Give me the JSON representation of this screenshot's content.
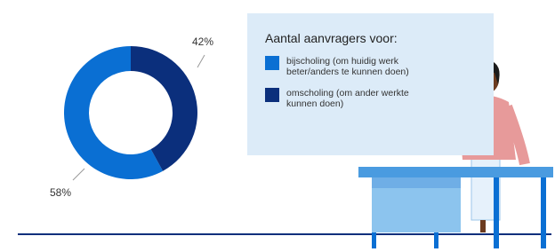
{
  "chart_data": {
    "type": "pie",
    "donut": true,
    "legend_title": "Aantal aanvragers voor:",
    "categories": [
      "bijscholing (om huidig werk beter/anders te kunnen doen)",
      "omscholing (om ander werkte kunnen doen)"
    ],
    "values": [
      58,
      42
    ],
    "value_labels": [
      "58%",
      "42%"
    ],
    "colors": [
      "#0a6fd3",
      "#0b2f7c"
    ]
  }
}
